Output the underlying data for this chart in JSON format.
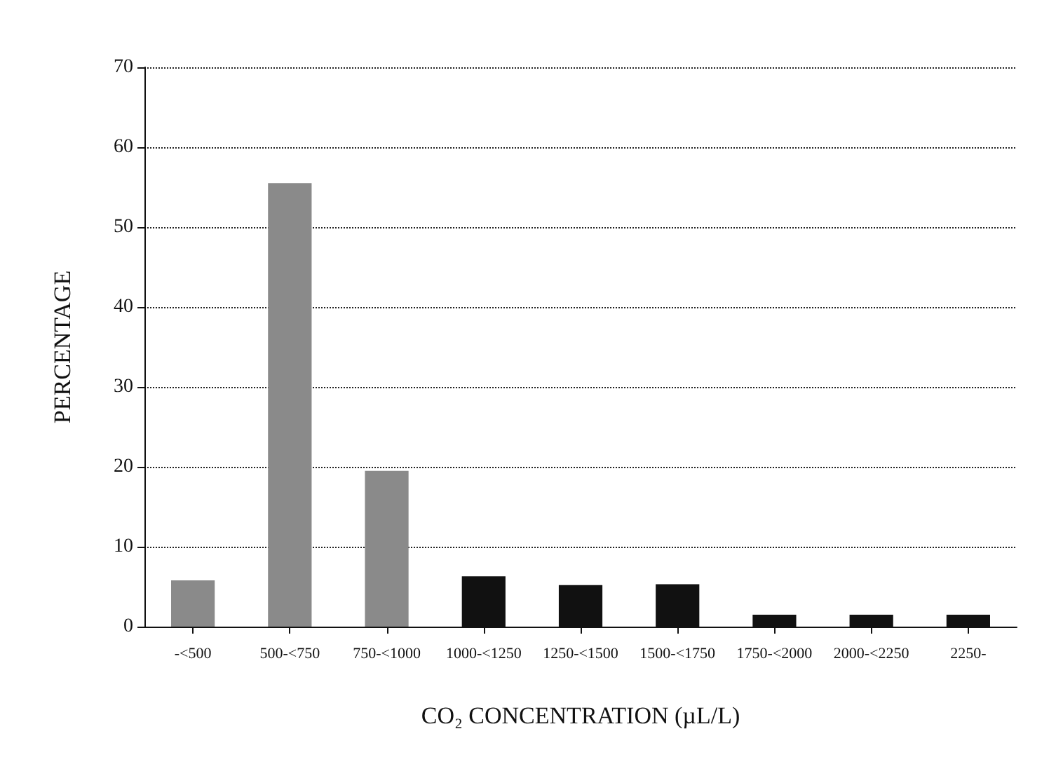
{
  "chart_data": {
    "type": "bar",
    "categories": [
      "-<500",
      "500-<750",
      "750-<1000",
      "1000-<1250",
      "1250-<1500",
      "1500-<1750",
      "1750-<2000",
      "2000-<2250",
      "2250-"
    ],
    "values": [
      5.8,
      55.5,
      19.5,
      6.3,
      5.2,
      5.3,
      1.5,
      1.5,
      1.5
    ],
    "colors": [
      "#8a8a8a",
      "#8a8a8a",
      "#8a8a8a",
      "#111111",
      "#111111",
      "#111111",
      "#111111",
      "#111111",
      "#111111"
    ],
    "xlabel": "CO₂ CONCENTRATION (µL/L)",
    "ylabel": "PERCENTAGE",
    "ylim": [
      0,
      70
    ],
    "yticks": [
      0,
      10,
      20,
      30,
      40,
      50,
      60,
      70
    ],
    "grid": "y"
  }
}
